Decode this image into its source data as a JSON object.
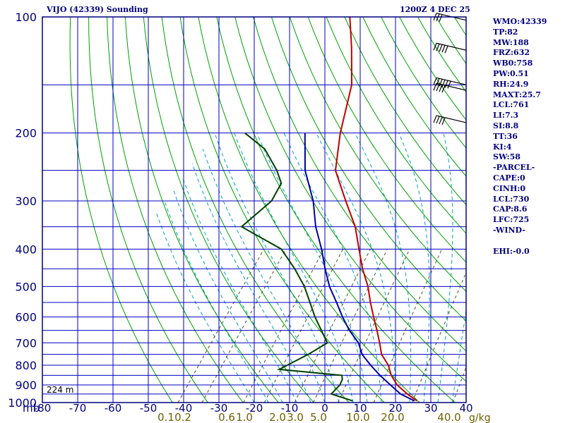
{
  "header": {
    "station_title": "VIJO (42339) Sounding",
    "datetime": "1200Z  4 DEC 25"
  },
  "indices": [
    "WMO:42339",
    "TP:82",
    "MW:188",
    "FRZ:632",
    "WB0:758",
    "PW:0.51",
    "RH:24.9",
    "MAXT:25.7",
    "LCL:761",
    "LI:7.3",
    "SI:8.8",
    "TT:36",
    "KI:4",
    "SW:58",
    "-PARCEL-",
    "CAPE:0",
    "CINH:0",
    "LCL:730",
    "CAP:8.6",
    "LFC:725",
    "-WIND-",
    "",
    "EHI:-0.0"
  ],
  "chart_data": {
    "type": "line",
    "chart_kind": "skew-T log-P sounding",
    "y_scale": "log",
    "yaxis_label": "mb",
    "ylim": [
      1000,
      100
    ],
    "xlim": [
      -80,
      40
    ],
    "y_tick_labels": [
      "100",
      "200",
      "300",
      "400",
      "500",
      "600",
      "700",
      "800",
      "900",
      "1000"
    ],
    "x_tick_labels": [
      "-80",
      "-70",
      "-60",
      "-50",
      "-40",
      "-30",
      "-20",
      "-10",
      "0",
      "10",
      "20",
      "30",
      "40"
    ],
    "mixing_ratio_labels": [
      "0.1",
      "0.2",
      "0.6",
      "1.0",
      "2.0",
      "3.0",
      "5.0",
      "10.0",
      "20.0",
      "40.0"
    ],
    "mixing_ratio_unit": "g/kg",
    "surface_height_label": "224 m",
    "colors": {
      "frame": "#000080",
      "isobar_isotherm": "#0000c0",
      "dry_adiabat": "#00a000",
      "moist_adiabat": "#00a0c0",
      "mixing_ratio": "#505020",
      "temperature": "#c00000",
      "dewpoint": "#004000",
      "parcel": "#0000a0"
    },
    "series": [
      {
        "role": "temperature",
        "points": [
          [
            990,
            25.7
          ],
          [
            950,
            21.5
          ],
          [
            900,
            16.7
          ],
          [
            850,
            13.0
          ],
          [
            800,
            10.0
          ],
          [
            750,
            5.8
          ],
          [
            700,
            2.8
          ],
          [
            650,
            -0.6
          ],
          [
            600,
            -4.4
          ],
          [
            550,
            -8.4
          ],
          [
            500,
            -12.5
          ],
          [
            450,
            -17.8
          ],
          [
            400,
            -23.0
          ],
          [
            350,
            -28.8
          ],
          [
            300,
            -37.0
          ],
          [
            250,
            -46.4
          ],
          [
            200,
            -53.0
          ],
          [
            150,
            -60.0
          ],
          [
            120,
            -68.0
          ],
          [
            100,
            -75.0
          ]
        ]
      },
      {
        "role": "dewpoint",
        "points": [
          [
            990,
            7.5
          ],
          [
            950,
            0.0
          ],
          [
            900,
            0.5
          ],
          [
            870,
            0.0
          ],
          [
            850,
            -1.0
          ],
          [
            820,
            -20.0
          ],
          [
            750,
            -15.0
          ],
          [
            700,
            -12.0
          ],
          [
            600,
            -21.0
          ],
          [
            500,
            -30.5
          ],
          [
            450,
            -37.0
          ],
          [
            400,
            -45.0
          ],
          [
            350,
            -61.0
          ],
          [
            300,
            -58.0
          ],
          [
            270,
            -59.0
          ],
          [
            250,
            -63.0
          ],
          [
            220,
            -71.0
          ],
          [
            200,
            -80.0
          ]
        ]
      },
      {
        "role": "parcel",
        "points": [
          [
            990,
            25.0
          ],
          [
            950,
            19.6
          ],
          [
            900,
            14.8
          ],
          [
            850,
            9.8
          ],
          [
            800,
            5.0
          ],
          [
            750,
            0.3
          ],
          [
            700,
            -3.2
          ],
          [
            650,
            -8.4
          ],
          [
            600,
            -13.2
          ],
          [
            550,
            -18.0
          ],
          [
            500,
            -23.4
          ],
          [
            450,
            -28.4
          ],
          [
            400,
            -33.6
          ],
          [
            350,
            -40.0
          ],
          [
            300,
            -46.2
          ],
          [
            250,
            -55.0
          ],
          [
            200,
            -63.0
          ]
        ]
      }
    ],
    "wind_barbs": [
      {
        "p": 102,
        "dir": 255,
        "kt": 30
      },
      {
        "p": 122,
        "dir": 260,
        "kt": 50
      },
      {
        "p": 150,
        "dir": 265,
        "kt": 60
      },
      {
        "p": 155,
        "dir": 265,
        "kt": 35
      },
      {
        "p": 188,
        "dir": 265,
        "kt": 40
      }
    ]
  }
}
